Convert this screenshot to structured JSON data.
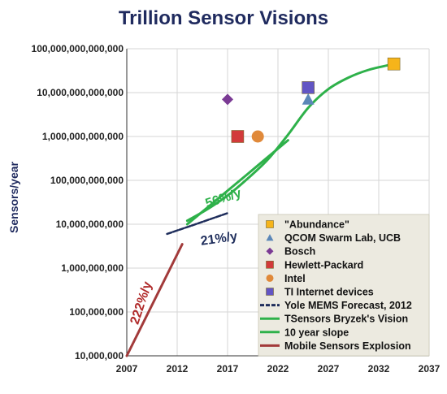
{
  "chart_data": {
    "type": "line",
    "title": "Trillion Sensor Visions",
    "xlabel": "",
    "ylabel": "Sensors/year",
    "scale": {
      "y": "log10"
    },
    "xlim": [
      2007,
      2037
    ],
    "ylim": [
      10000000,
      100000000000000
    ],
    "grid": true,
    "legend_position": "bottom-right",
    "x_ticks": [
      "2007",
      "2012",
      "2017",
      "2022",
      "2027",
      "2032",
      "2037"
    ],
    "y_ticks": [
      {
        "value": 10000000,
        "label": "10,000,000"
      },
      {
        "value": 100000000,
        "label": "100,000,000"
      },
      {
        "value": 1000000000,
        "label": "1,000,000,000"
      },
      {
        "value": 10000000000,
        "label": "10,000,000,000"
      },
      {
        "value": 100000000000,
        "label": "100,000,000,000"
      },
      {
        "value": 1000000000000,
        "label": "1,000,000,000,000"
      },
      {
        "value": 10000000000000,
        "label": "10,000,000,000,000"
      },
      {
        "value": 100000000000000,
        "label": "100,000,000,000,000"
      }
    ],
    "series": [
      {
        "name": "Yole MEMS Forecast, 2012",
        "kind": "line",
        "color": "#1f2e5c",
        "dashed": true,
        "x": [
          2011,
          2012,
          2013,
          2014,
          2015,
          2016,
          2017
        ],
        "y": [
          6000000000,
          7200000000,
          8600000000,
          10300000000,
          12400000000,
          14900000000,
          17900000000
        ]
      },
      {
        "name": "TSensors Bryzek's Vision",
        "kind": "line",
        "color": "#2eb14a",
        "x": [
          2013,
          2015,
          2017,
          2019,
          2021,
          2023,
          2025,
          2027,
          2029,
          2031,
          2033.5
        ],
        "y": [
          12000000000,
          22000000000,
          45000000000,
          110000000000,
          300000000000,
          1100000000000,
          4500000000000,
          12000000000000,
          22000000000000,
          33000000000000,
          45000000000000
        ]
      },
      {
        "name": "10 year slope",
        "kind": "line",
        "color": "#2eb14a",
        "x": [
          2013,
          2015,
          2017,
          2019,
          2021,
          2023
        ],
        "y": [
          10000000000,
          24000000000,
          58000000000,
          140000000000,
          340000000000,
          820000000000
        ]
      },
      {
        "name": "Mobile Sensors Explosion",
        "kind": "line",
        "color": "#a23a3a",
        "x": [
          2007,
          2012.5
        ],
        "y": [
          10000000,
          3500000000
        ]
      },
      {
        "name": "\"Abundance\"",
        "kind": "point",
        "marker": "square",
        "color": "#f6b41a",
        "x": [
          2033.5
        ],
        "y": [
          45000000000000
        ]
      },
      {
        "name": "QCOM Swarm Lab, UCB",
        "kind": "point",
        "marker": "triangle",
        "color": "#5b87b8",
        "x": [
          2025
        ],
        "y": [
          7000000000000
        ]
      },
      {
        "name": "Bosch",
        "kind": "point",
        "marker": "diamond",
        "color": "#7a3a94",
        "x": [
          2017
        ],
        "y": [
          7000000000000
        ]
      },
      {
        "name": "Hewlett-Packard",
        "kind": "point",
        "marker": "square",
        "color": "#d23a3a",
        "x": [
          2018
        ],
        "y": [
          1000000000000
        ]
      },
      {
        "name": "Intel",
        "kind": "point",
        "marker": "circle",
        "color": "#e0893a",
        "x": [
          2020
        ],
        "y": [
          1000000000000
        ]
      },
      {
        "name": "TI Internet devices",
        "kind": "point",
        "marker": "square",
        "color": "#6255c4",
        "x": [
          2025
        ],
        "y": [
          13000000000000
        ]
      }
    ],
    "annotations": [
      {
        "text": "222%/y",
        "x": 2008.8,
        "y": 150000000,
        "angle": -72,
        "color": "#b02a2a"
      },
      {
        "text": "21%/y",
        "x": 2016.2,
        "y": 3800000000,
        "angle": -8,
        "color": "#1f2e5c"
      },
      {
        "text": "56%/y",
        "x": 2016.7,
        "y": 32000000000,
        "angle": -18,
        "color": "#2eb14a"
      }
    ],
    "legend_order": [
      4,
      5,
      6,
      7,
      8,
      9,
      0,
      1,
      2,
      3
    ]
  }
}
